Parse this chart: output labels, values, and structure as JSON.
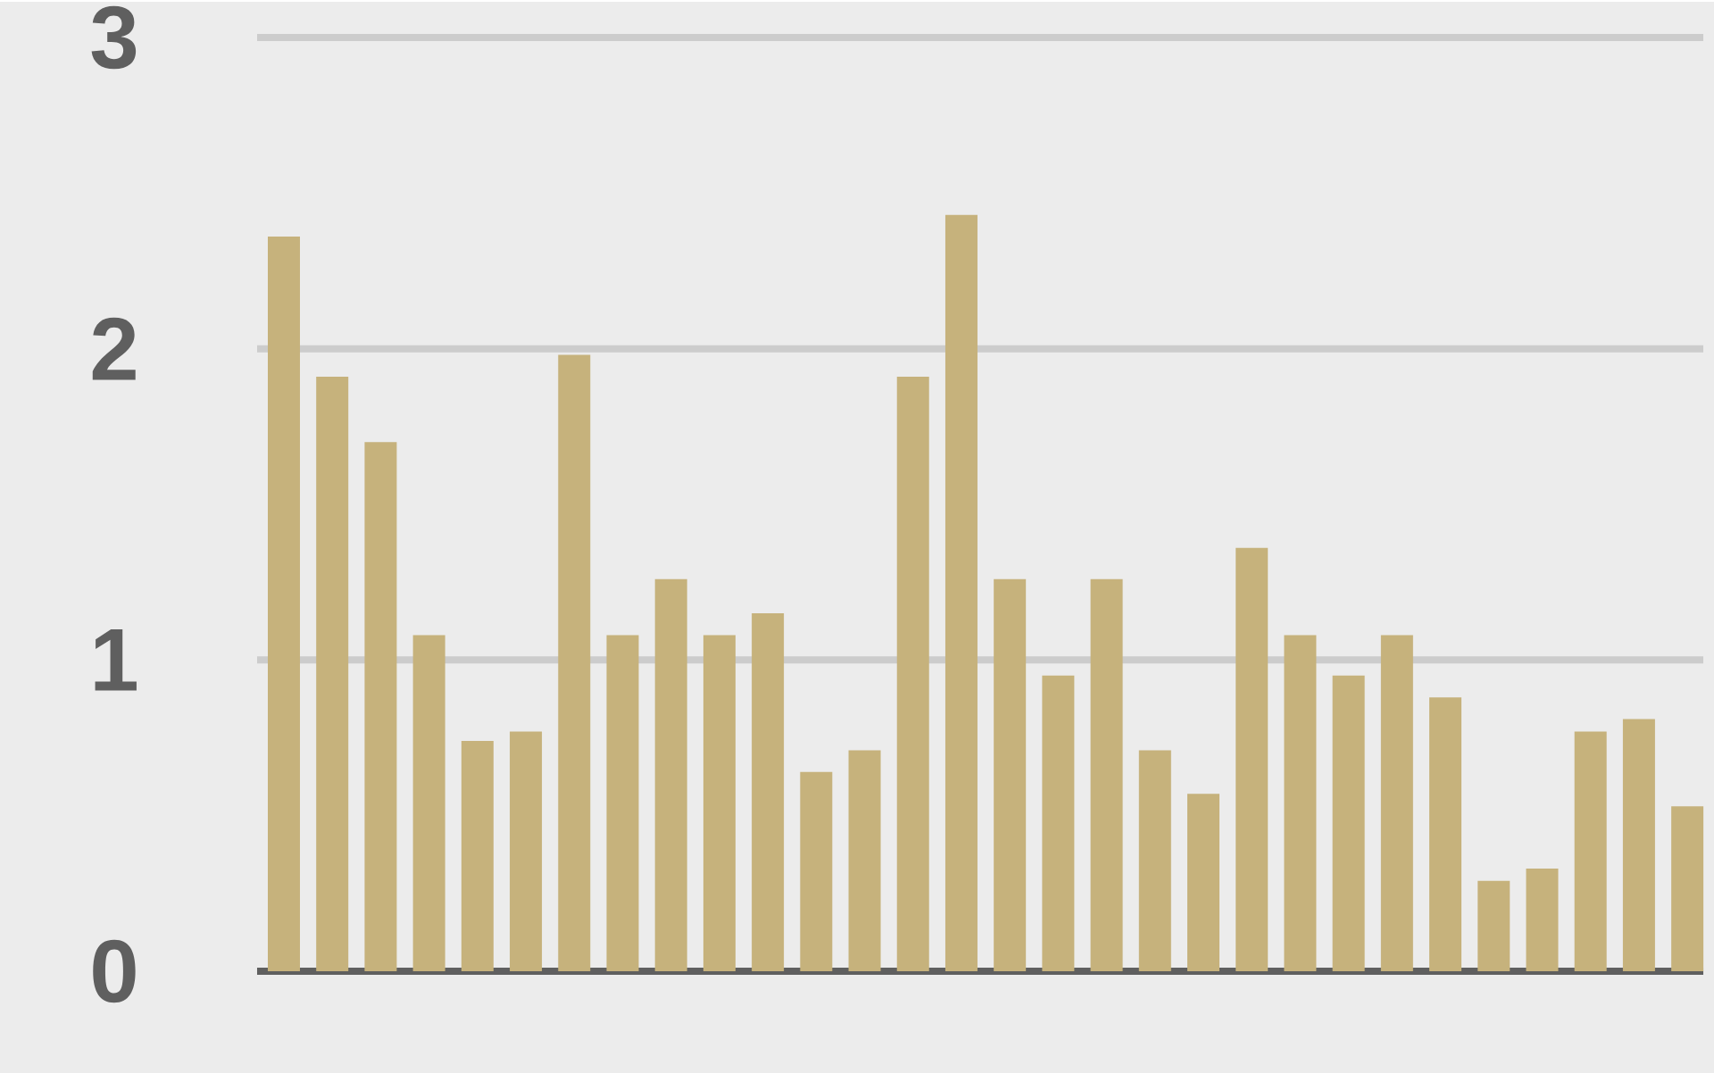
{
  "chart_data": {
    "type": "bar",
    "categories": [
      null,
      null,
      null,
      null,
      null,
      null,
      null,
      null,
      null,
      null,
      null,
      null,
      null,
      null,
      null,
      null,
      null,
      null,
      null,
      null,
      null,
      null,
      null,
      null,
      null,
      null,
      null,
      null,
      null,
      null
    ],
    "values": [
      2.36,
      1.91,
      1.7,
      1.08,
      0.74,
      0.77,
      1.98,
      1.08,
      1.26,
      1.08,
      1.15,
      0.64,
      0.71,
      1.91,
      2.43,
      1.26,
      0.95,
      1.26,
      0.71,
      0.57,
      1.36,
      1.08,
      0.95,
      1.08,
      0.88,
      0.29,
      0.33,
      0.77,
      0.81,
      0.53
    ],
    "color": "#c6b27c",
    "ylim": [
      0,
      3
    ],
    "yticks": [
      0,
      1,
      2,
      3
    ],
    "grid": "y",
    "tick_labels": "y"
  }
}
